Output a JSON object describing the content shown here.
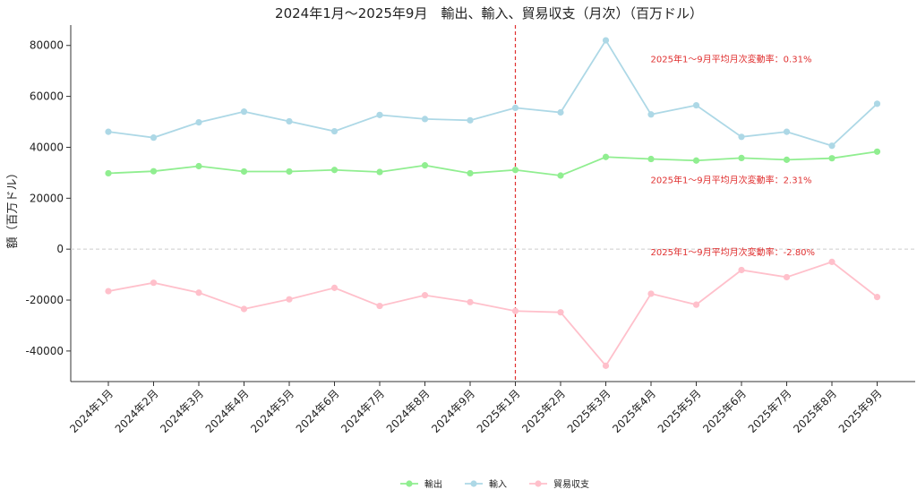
{
  "chart_data": {
    "type": "line",
    "title": "2024年1月～2025年9月　輸出、輸入、貿易収支（月次）（百万ドル）",
    "xlabel": "",
    "ylabel": "額（百万ドル）",
    "categories": [
      "2024年1月",
      "2024年2月",
      "2024年3月",
      "2024年4月",
      "2024年5月",
      "2024年6月",
      "2024年7月",
      "2024年8月",
      "2024年9月",
      "2025年1月",
      "2025年2月",
      "2025年3月",
      "2025年4月",
      "2025年5月",
      "2025年6月",
      "2025年7月",
      "2025年8月",
      "2025年9月"
    ],
    "ylim": [
      -52000,
      88000
    ],
    "yticks": [
      -40000,
      -20000,
      0,
      20000,
      40000,
      60000,
      80000
    ],
    "series": [
      {
        "name": "輸出",
        "color": "#90ee90",
        "values": [
          29800,
          30600,
          32600,
          30500,
          30500,
          31100,
          30300,
          32900,
          29800,
          31100,
          28900,
          36200,
          35400,
          34800,
          35800,
          35100,
          35700,
          38300
        ]
      },
      {
        "name": "輸入",
        "color": "#add8e6",
        "values": [
          46100,
          43800,
          49800,
          54000,
          50200,
          46300,
          52700,
          51100,
          50600,
          55500,
          53700,
          82000,
          52900,
          56500,
          44100,
          46100,
          40600,
          57100
        ]
      },
      {
        "name": "貿易収支",
        "color": "#ffc0cb",
        "values": [
          -16500,
          -13200,
          -17100,
          -23500,
          -19700,
          -15200,
          -22300,
          -18100,
          -20800,
          -24300,
          -24800,
          -45800,
          -17500,
          -21800,
          -8200,
          -11000,
          -5000,
          -18800
        ]
      }
    ],
    "zero_line": {
      "y": 0,
      "color": "#cccccc",
      "style": "dashed"
    },
    "vline": {
      "x": "2025年1月",
      "color": "#e03030",
      "style": "dashed"
    },
    "annotations": [
      {
        "text": "2025年1～9月平均月次変動率：0.31%",
        "x": "2025年4月",
        "y": 74500,
        "color": "#e03030"
      },
      {
        "text": "2025年1～9月平均月次変動率：2.31%",
        "x": "2025年4月",
        "y": 27000,
        "color": "#e03030"
      },
      {
        "text": "2025年1～9月平均月次変動率：-2.80%",
        "x": "2025年4月",
        "y": -1300,
        "color": "#e03030"
      }
    ],
    "legend": {
      "position": "bottom-center",
      "entries": [
        "輸出",
        "輸入",
        "貿易収支"
      ]
    },
    "grid": false
  }
}
